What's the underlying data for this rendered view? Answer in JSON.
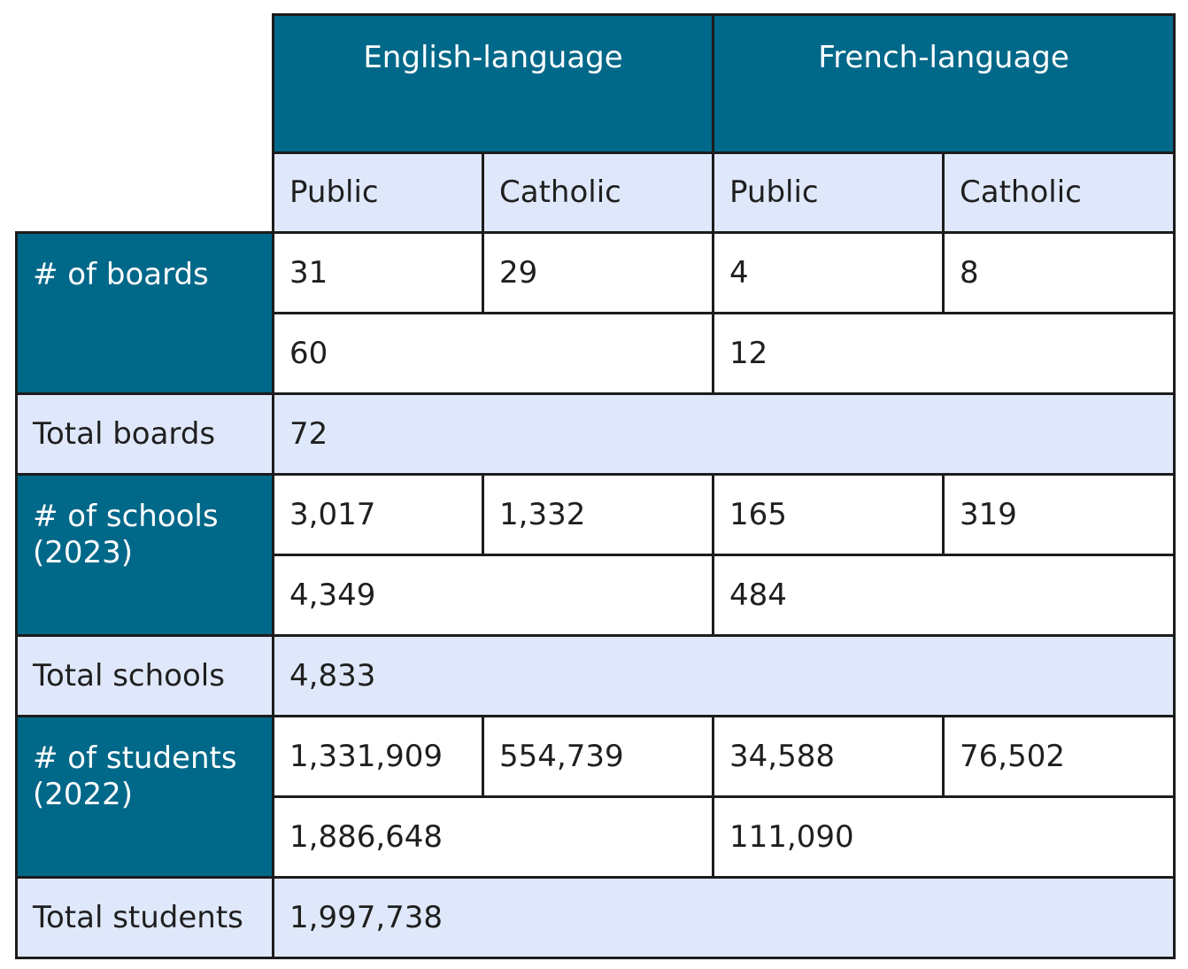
{
  "header": {
    "groups": [
      "English-language",
      "French-language"
    ],
    "subheaders": [
      "Public",
      "Catholic",
      "Public",
      "Catholic"
    ]
  },
  "boards": {
    "label": "# of boards",
    "values": [
      "31",
      "29",
      "4",
      "8"
    ],
    "subtotals": [
      "60",
      "12"
    ],
    "total_label": "Total boards",
    "total": "72"
  },
  "schools": {
    "label_line1": "# of schools",
    "label_line2": "(2023)",
    "values": [
      "3,017",
      "1,332",
      "165",
      "319"
    ],
    "subtotals": [
      "4,349",
      "484"
    ],
    "total_label": "Total schools",
    "total": "4,833"
  },
  "students": {
    "label_line1": "# of students",
    "label_line2": "(2022)",
    "values": [
      "1,331,909",
      "554,739",
      "34,588",
      "76,502"
    ],
    "subtotals": [
      "1,886,648",
      "111,090"
    ],
    "total_label": "Total students",
    "total": "1,997,738"
  },
  "colors": {
    "header_teal": "#006889",
    "light_blue": "#dfe8fb",
    "border": "#1c1c1c"
  }
}
